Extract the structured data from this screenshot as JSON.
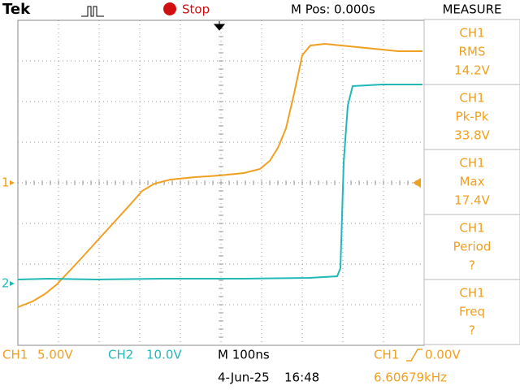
{
  "header": {
    "brand": "Tek",
    "status": "Stop",
    "position": "M Pos: 0.000s",
    "panel_title": "MEASURE"
  },
  "measurements": [
    {
      "channel": "CH1",
      "name": "RMS",
      "value": "14.2V"
    },
    {
      "channel": "CH1",
      "name": "Pk-Pk",
      "value": "33.8V"
    },
    {
      "channel": "CH1",
      "name": "Max",
      "value": "17.4V"
    },
    {
      "channel": "CH1",
      "name": "Period",
      "value": "?"
    },
    {
      "channel": "CH1",
      "name": "Freq",
      "value": "?"
    }
  ],
  "markers": {
    "ch1": "1",
    "ch2": "2"
  },
  "footer": {
    "ch1_label": "CH1",
    "ch1_scale": "5.00V",
    "ch2_label": "CH2",
    "ch2_scale": "10.0V",
    "timebase": "M 100ns",
    "trigger_source": "CH1",
    "trigger_level": "0.00V",
    "date": "4-Jun-25",
    "time": "16:48",
    "frequency": "6.60679kHz"
  }
}
